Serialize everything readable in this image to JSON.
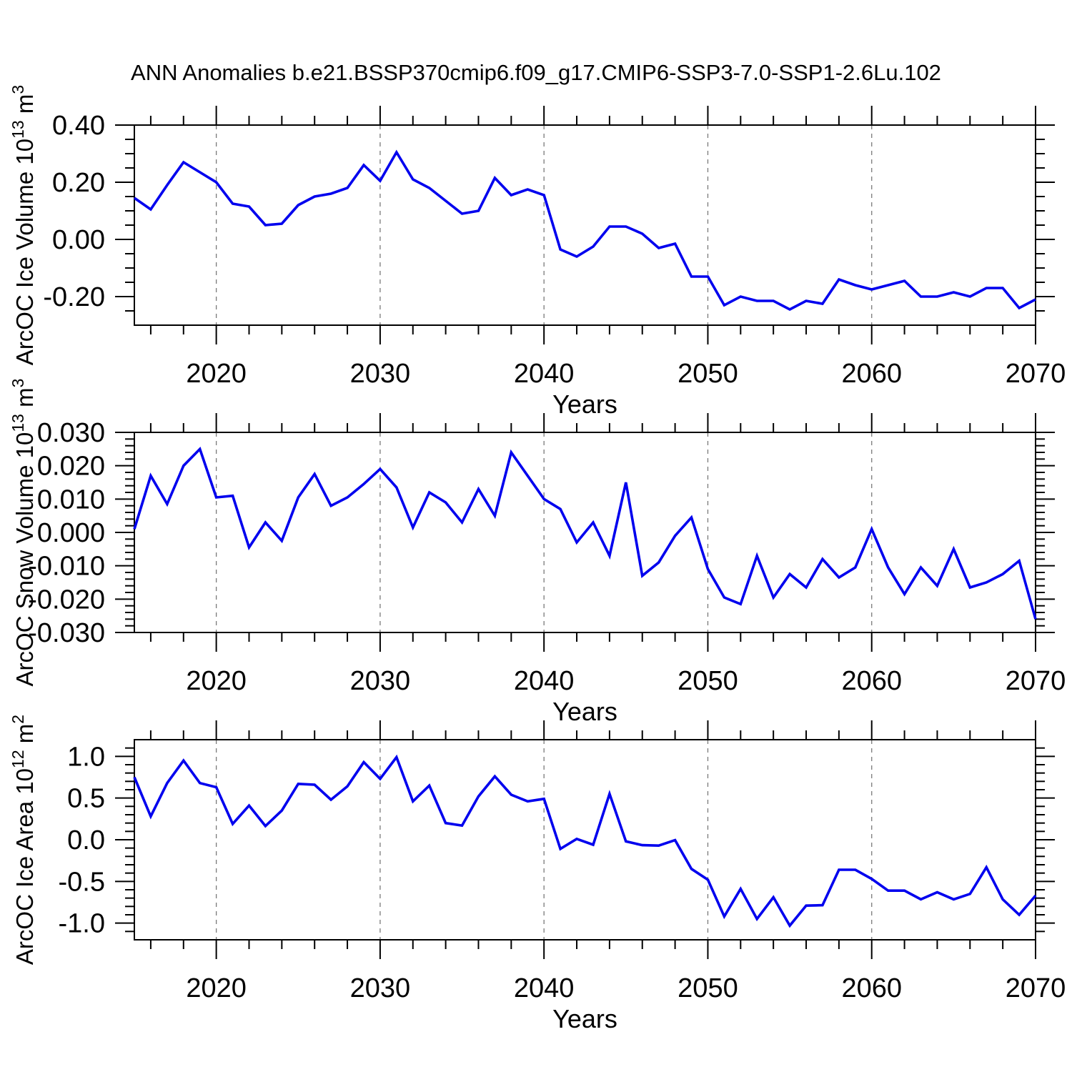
{
  "title": "ANN Anomalies b.e21.BSSP370cmip6.f09_g17.CMIP6-SSP3-7.0-SSP1-2.6Lu.102",
  "line_color": "#0000ee",
  "gridline_color": "#7a7a7a",
  "axis_color": "#000000",
  "years": [
    2015,
    2016,
    2017,
    2018,
    2019,
    2020,
    2021,
    2022,
    2023,
    2024,
    2025,
    2026,
    2027,
    2028,
    2029,
    2030,
    2031,
    2032,
    2033,
    2034,
    2035,
    2036,
    2037,
    2038,
    2039,
    2040,
    2041,
    2042,
    2043,
    2044,
    2045,
    2046,
    2047,
    2048,
    2049,
    2050,
    2051,
    2052,
    2053,
    2054,
    2055,
    2056,
    2057,
    2058,
    2059,
    2060,
    2061,
    2062,
    2063,
    2064,
    2065,
    2066,
    2067,
    2068,
    2069,
    2070
  ],
  "chart_data": [
    {
      "type": "line",
      "name": "ice-volume",
      "ylabel": {
        "prefix": "ArcOC Ice Volume 10",
        "exponent": "13",
        "suffix": " m",
        "suffix_exponent": "3"
      },
      "xlabel": "Years",
      "x_range": [
        2015,
        2070
      ],
      "y_range": [
        -0.3,
        0.4
      ],
      "x_major_ticks": [
        2020,
        2030,
        2040,
        2050,
        2060,
        2070
      ],
      "x_minor_step": 2,
      "gridlines_x": [
        2020,
        2030,
        2040,
        2050,
        2060
      ],
      "grid": "vertical-dashed",
      "y_major": {
        "values": [
          0.4,
          0.2,
          0.0,
          -0.2
        ],
        "labels": [
          "0.40",
          "0.20",
          "0.00",
          "-0.20"
        ]
      },
      "y_minor_step": 0.05,
      "values": [
        0.145,
        0.105,
        0.19,
        0.27,
        0.235,
        0.2,
        0.125,
        0.115,
        0.05,
        0.055,
        0.12,
        0.15,
        0.16,
        0.18,
        0.26,
        0.205,
        0.305,
        0.21,
        0.18,
        0.135,
        0.09,
        0.1,
        0.215,
        0.155,
        0.175,
        0.155,
        -0.035,
        -0.06,
        -0.025,
        0.045,
        0.045,
        0.02,
        -0.03,
        -0.015,
        -0.13,
        -0.13,
        -0.23,
        -0.2,
        -0.215,
        -0.215,
        -0.245,
        -0.215,
        -0.225,
        -0.14,
        -0.16,
        -0.175,
        -0.16,
        -0.145,
        -0.2,
        -0.2,
        -0.185,
        -0.2,
        -0.17,
        -0.17,
        -0.24,
        -0.21
      ]
    },
    {
      "type": "line",
      "name": "snow-volume",
      "ylabel": {
        "prefix": "ArcOC Snow Volume 10",
        "exponent": "13",
        "suffix": " m",
        "suffix_exponent": "3"
      },
      "xlabel": "Years",
      "x_range": [
        2015,
        2070
      ],
      "y_range": [
        -0.03,
        0.03
      ],
      "x_major_ticks": [
        2020,
        2030,
        2040,
        2050,
        2060,
        2070
      ],
      "x_minor_step": 2,
      "gridlines_x": [
        2020,
        2030,
        2040,
        2050,
        2060
      ],
      "grid": "vertical-dashed",
      "y_major": {
        "values": [
          0.03,
          0.02,
          0.01,
          0.0,
          -0.01,
          -0.02,
          -0.03
        ],
        "labels": [
          "0.030",
          "0.020",
          "0.010",
          "0.000",
          "-0.010",
          "-0.020",
          "-0.030"
        ]
      },
      "y_minor_step": 0.002,
      "values": [
        0.001,
        0.017,
        0.0085,
        0.02,
        0.025,
        0.0105,
        0.011,
        -0.0045,
        0.003,
        -0.0025,
        0.0105,
        0.0175,
        0.008,
        0.0105,
        0.0145,
        0.019,
        0.0135,
        0.0015,
        0.012,
        0.009,
        0.003,
        0.013,
        0.005,
        0.024,
        0.017,
        0.01,
        0.007,
        -0.003,
        0.003,
        -0.007,
        0.015,
        -0.013,
        -0.009,
        -0.001,
        0.0045,
        -0.011,
        -0.0195,
        -0.0215,
        -0.007,
        -0.0195,
        -0.0125,
        -0.0165,
        -0.008,
        -0.0135,
        -0.0105,
        0.001,
        -0.0105,
        -0.0185,
        -0.0105,
        -0.016,
        -0.005,
        -0.0165,
        -0.015,
        -0.0125,
        -0.0085,
        -0.026
      ]
    },
    {
      "type": "line",
      "name": "ice-area",
      "ylabel": {
        "prefix": "ArcOC Ice Area 10",
        "exponent": "12",
        "suffix": " m",
        "suffix_exponent": "2"
      },
      "xlabel": "Years",
      "x_range": [
        2015,
        2070
      ],
      "y_range": [
        -1.2,
        1.2
      ],
      "x_major_ticks": [
        2020,
        2030,
        2040,
        2050,
        2060,
        2070
      ],
      "x_minor_step": 2,
      "gridlines_x": [
        2020,
        2030,
        2040,
        2050,
        2060
      ],
      "grid": "vertical-dashed",
      "y_major": {
        "values": [
          1.0,
          0.5,
          0.0,
          -0.5,
          -1.0
        ],
        "labels": [
          "1.0",
          "0.5",
          "0.0",
          "-0.5",
          "-1.0"
        ]
      },
      "y_minor_step": 0.1,
      "values": [
        0.75,
        0.28,
        0.68,
        0.95,
        0.68,
        0.63,
        0.19,
        0.41,
        0.165,
        0.35,
        0.67,
        0.66,
        0.48,
        0.64,
        0.93,
        0.73,
        0.99,
        0.46,
        0.65,
        0.2,
        0.17,
        0.52,
        0.76,
        0.54,
        0.46,
        0.49,
        -0.11,
        0.01,
        -0.06,
        0.55,
        -0.02,
        -0.065,
        -0.07,
        -0.005,
        -0.35,
        -0.48,
        -0.92,
        -0.59,
        -0.95,
        -0.69,
        -1.03,
        -0.79,
        -0.785,
        -0.36,
        -0.36,
        -0.47,
        -0.61,
        -0.61,
        -0.715,
        -0.63,
        -0.715,
        -0.65,
        -0.33,
        -0.715,
        -0.9,
        -0.67
      ]
    }
  ]
}
